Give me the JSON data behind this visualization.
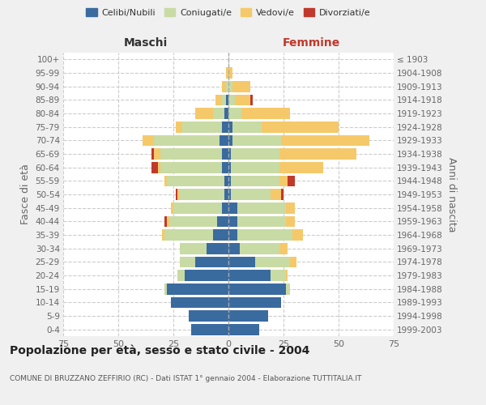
{
  "age_groups": [
    "0-4",
    "5-9",
    "10-14",
    "15-19",
    "20-24",
    "25-29",
    "30-34",
    "35-39",
    "40-44",
    "45-49",
    "50-54",
    "55-59",
    "60-64",
    "65-69",
    "70-74",
    "75-79",
    "80-84",
    "85-89",
    "90-94",
    "95-99",
    "100+"
  ],
  "birth_years": [
    "1999-2003",
    "1994-1998",
    "1989-1993",
    "1984-1988",
    "1979-1983",
    "1974-1978",
    "1969-1973",
    "1964-1968",
    "1959-1963",
    "1954-1958",
    "1949-1953",
    "1944-1948",
    "1939-1943",
    "1934-1938",
    "1929-1933",
    "1924-1928",
    "1919-1923",
    "1914-1918",
    "1909-1913",
    "1904-1908",
    "≤ 1903"
  ],
  "maschi": {
    "celibe": [
      17,
      18,
      26,
      28,
      20,
      15,
      10,
      7,
      5,
      3,
      2,
      2,
      3,
      3,
      4,
      3,
      2,
      1,
      0,
      0,
      0
    ],
    "coniugato": [
      0,
      0,
      0,
      1,
      3,
      7,
      12,
      22,
      22,
      22,
      20,
      26,
      28,
      28,
      30,
      18,
      5,
      2,
      1,
      0,
      0
    ],
    "vedovo": [
      0,
      0,
      0,
      0,
      0,
      0,
      0,
      1,
      1,
      1,
      1,
      1,
      1,
      3,
      5,
      3,
      8,
      3,
      2,
      1,
      0
    ],
    "divorziato": [
      0,
      0,
      0,
      0,
      0,
      0,
      0,
      0,
      1,
      0,
      1,
      0,
      3,
      1,
      0,
      0,
      0,
      0,
      0,
      0,
      0
    ]
  },
  "femmine": {
    "nubile": [
      14,
      18,
      24,
      26,
      19,
      12,
      5,
      4,
      4,
      4,
      1,
      1,
      1,
      1,
      2,
      2,
      0,
      0,
      0,
      0,
      0
    ],
    "coniugata": [
      0,
      0,
      0,
      2,
      7,
      16,
      18,
      25,
      22,
      22,
      18,
      22,
      22,
      22,
      22,
      13,
      6,
      3,
      2,
      0,
      0
    ],
    "vedova": [
      0,
      0,
      0,
      0,
      1,
      3,
      4,
      5,
      4,
      4,
      5,
      4,
      20,
      35,
      40,
      35,
      22,
      7,
      8,
      2,
      0
    ],
    "divorziata": [
      0,
      0,
      0,
      0,
      0,
      0,
      0,
      0,
      0,
      0,
      1,
      3,
      0,
      0,
      0,
      0,
      0,
      1,
      0,
      0,
      0
    ]
  },
  "colors": {
    "celibe": "#3a6b9f",
    "coniugato": "#c8dba4",
    "vedovo": "#f5c96a",
    "divorziato": "#c0392b"
  },
  "xlim": 75,
  "title": "Popolazione per età, sesso e stato civile - 2004",
  "subtitle": "COMUNE DI BRUZZANO ZEFFIRIO (RC) - Dati ISTAT 1° gennaio 2004 - Elaborazione TUTTITALIA.IT",
  "ylabel_left": "Fasce di età",
  "ylabel_right": "Anni di nascita",
  "legend_labels": [
    "Celibi/Nubili",
    "Coniugati/e",
    "Vedovi/e",
    "Divorziati/e"
  ],
  "bg_color": "#f0f0f0",
  "plot_bg": "#ffffff",
  "maschi_label_color": "#333333",
  "femmine_label_color": "#c0392b"
}
